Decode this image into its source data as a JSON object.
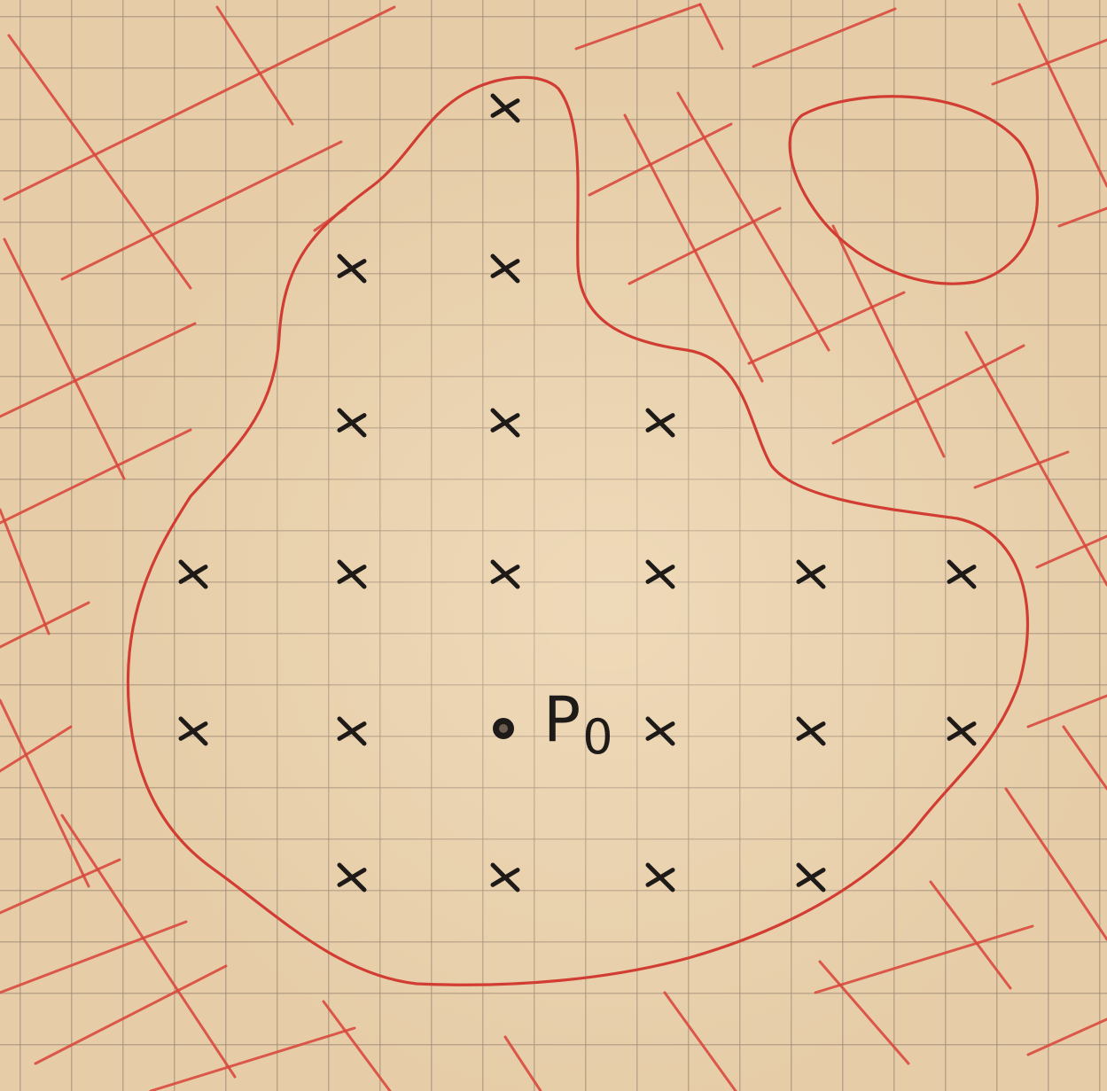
{
  "point_label": "P",
  "point_subscript": "0",
  "colors": {
    "paper": "#e6cda8",
    "grid": "#968270",
    "boundary": "#d23d33",
    "ink": "#1e1a18"
  },
  "sample_grid": {
    "rows": [
      {
        "row": 0,
        "columns": [
          2
        ]
      },
      {
        "row": 1,
        "columns": [
          1,
          2
        ]
      },
      {
        "row": 2,
        "columns": [
          1,
          2,
          3
        ]
      },
      {
        "row": 3,
        "columns": [
          0,
          1,
          2,
          3,
          4,
          5
        ]
      },
      {
        "row": 4,
        "columns": [
          0,
          1,
          3,
          4,
          5
        ]
      },
      {
        "row": 5,
        "columns": [
          1,
          2,
          3,
          4
        ]
      }
    ],
    "reference_point": {
      "row": 4,
      "column": 2
    }
  }
}
